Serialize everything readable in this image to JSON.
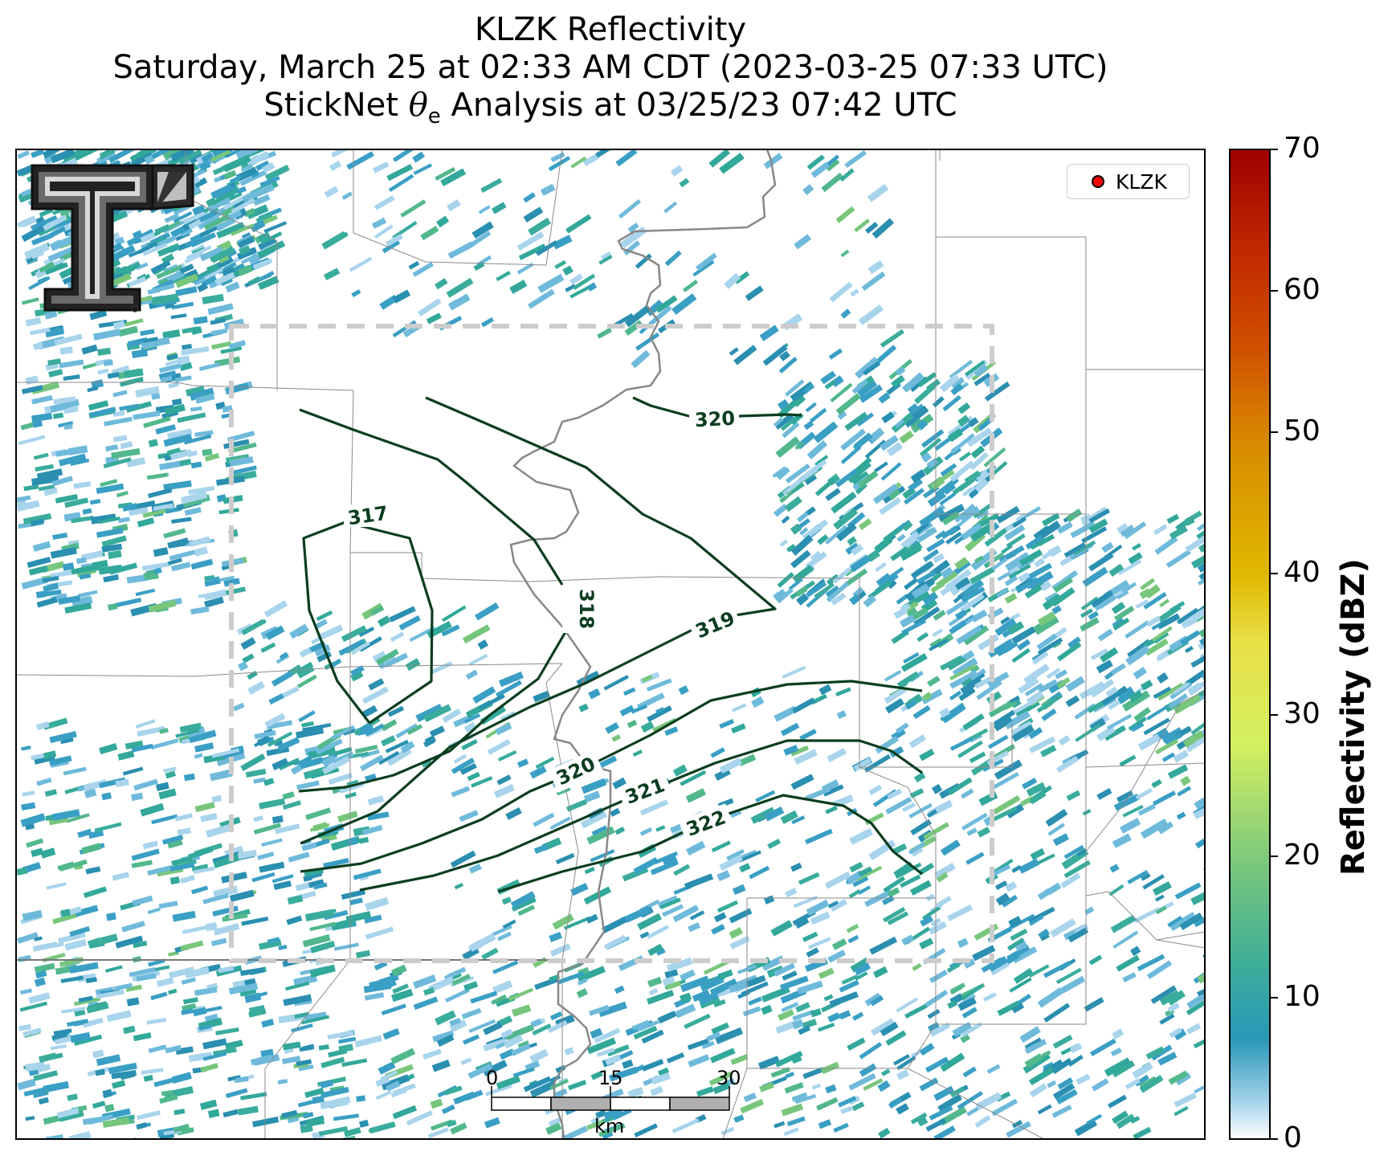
{
  "title": {
    "line1": "KLZK Reflectivity",
    "line2": "Saturday, March 25 at 02:33 AM CDT (2023-03-25 07:33 UTC)",
    "line3_prefix": "StickNet ",
    "line3_symbol": "θ",
    "line3_sub": "e",
    "line3_suffix": " Analysis at 03/25/23 07:42 UTC"
  },
  "legend": {
    "label": "KLZK",
    "marker_color": "#ff0000"
  },
  "colorbar": {
    "label": "Reflectivity (dBZ)",
    "min": 0,
    "max": 70,
    "ticks": [
      "0",
      "10",
      "20",
      "30",
      "40",
      "50",
      "60",
      "70"
    ]
  },
  "contours": {
    "color": "#0b3d1f",
    "labels": [
      "317",
      "318",
      "319",
      "320",
      "320",
      "321",
      "322"
    ]
  },
  "scale_bar": {
    "ticks": [
      "0",
      "15",
      "30"
    ],
    "unit": "km"
  },
  "analysis_box": {
    "style": "dashed",
    "color": "#cccccc"
  },
  "logo": {
    "name": "Texas Tech Double T"
  }
}
